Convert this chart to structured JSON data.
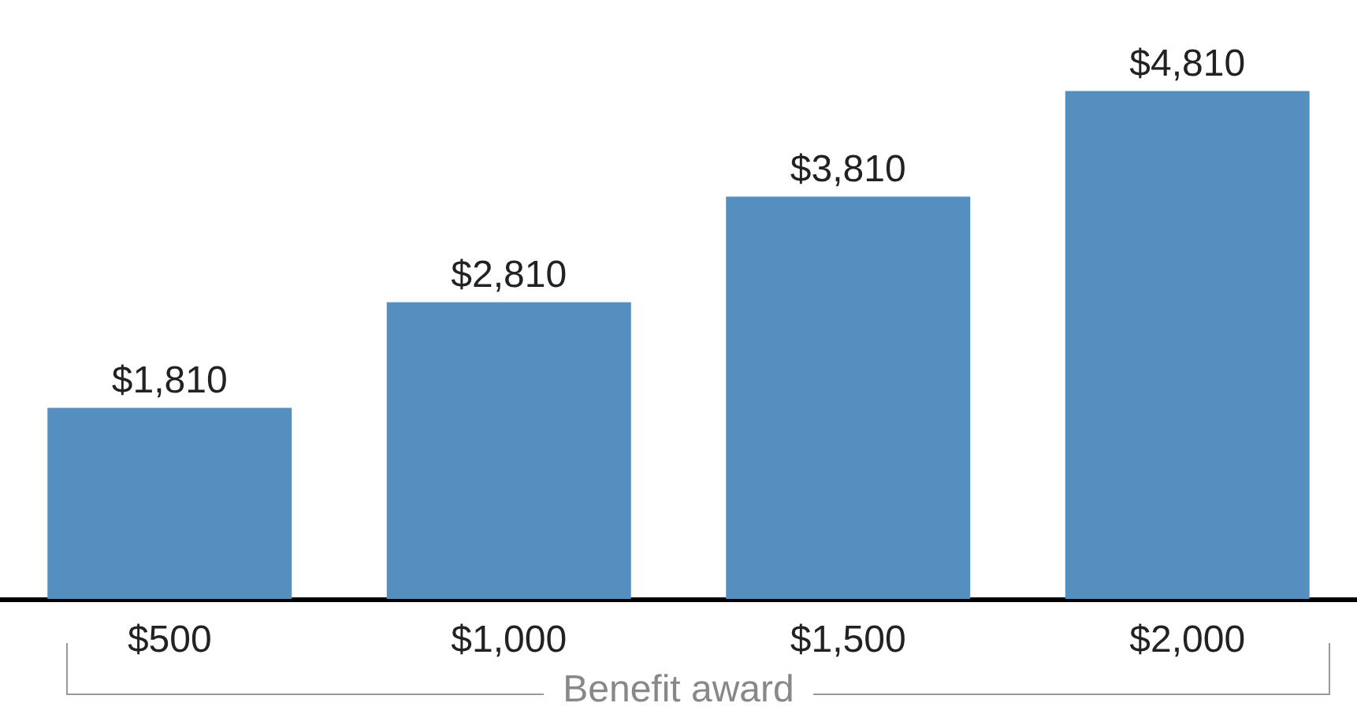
{
  "chart_data": {
    "type": "bar",
    "xlabel": "Benefit award",
    "categories": [
      "$500",
      "$1,000",
      "$1,500",
      "$2,000"
    ],
    "values": [
      1810,
      2810,
      3810,
      4810
    ],
    "value_labels": [
      "$1,810",
      "$2,810",
      "$3,810",
      "$4,810"
    ],
    "color": "#558fc0"
  }
}
